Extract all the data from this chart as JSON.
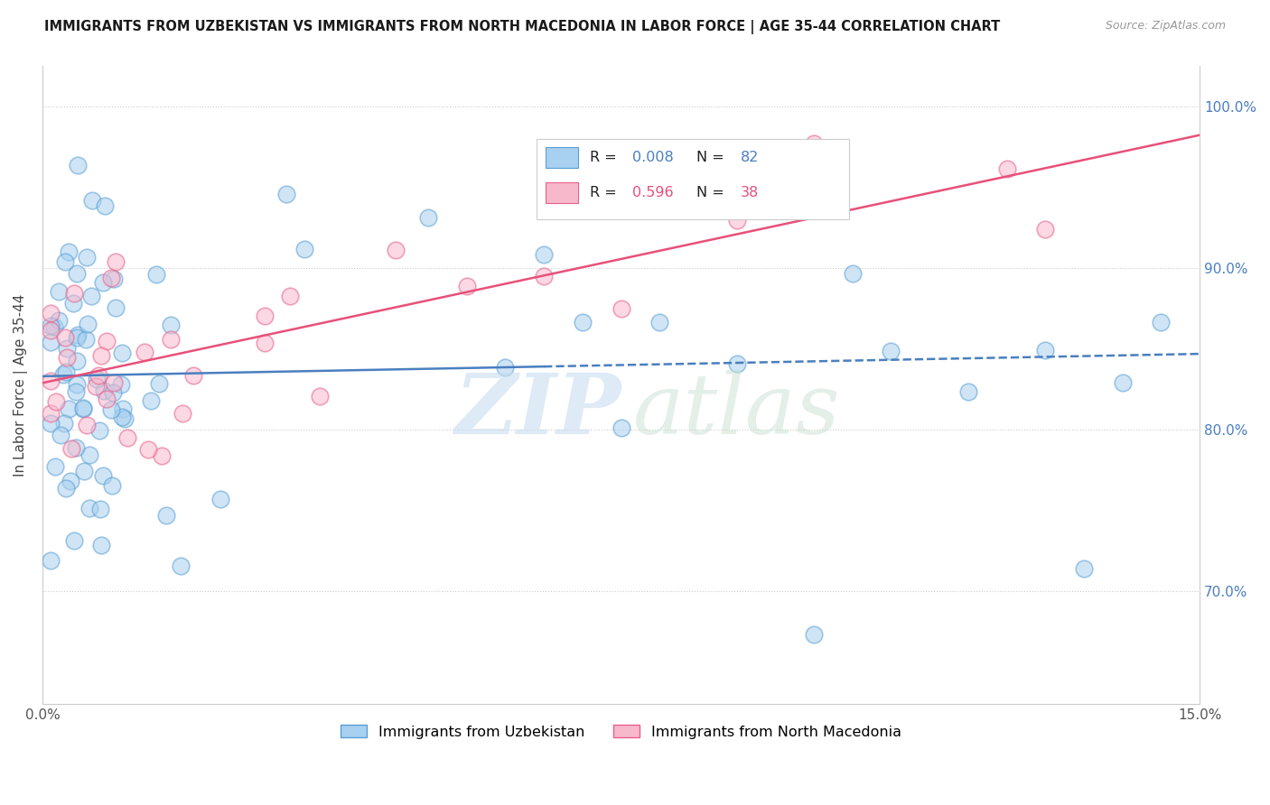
{
  "title": "IMMIGRANTS FROM UZBEKISTAN VS IMMIGRANTS FROM NORTH MACEDONIA IN LABOR FORCE | AGE 35-44 CORRELATION CHART",
  "source": "Source: ZipAtlas.com",
  "ylabel": "In Labor Force | Age 35-44",
  "xlim": [
    0.0,
    0.15
  ],
  "ylim": [
    0.63,
    1.025
  ],
  "R_uzbekistan": 0.008,
  "N_uzbekistan": 82,
  "R_north_macedonia": 0.596,
  "N_north_macedonia": 38,
  "color_uzbekistan_fill": "#A8D0F0",
  "color_uzbekistan_edge": "#5A9FD4",
  "color_north_macedonia_fill": "#F8B8CC",
  "color_north_macedonia_edge": "#E8608A",
  "color_uzbekistan_line": "#4A7FC0",
  "color_north_macedonia_line": "#E8507A",
  "legend_label_uzbekistan": "Immigrants from Uzbekistan",
  "legend_label_north_macedonia": "Immigrants from North Macedonia",
  "y_tick_positions": [
    0.7,
    0.8,
    0.9,
    1.0
  ],
  "y_tick_labels": [
    "70.0%",
    "80.0%",
    "90.0%",
    "100.0%"
  ]
}
